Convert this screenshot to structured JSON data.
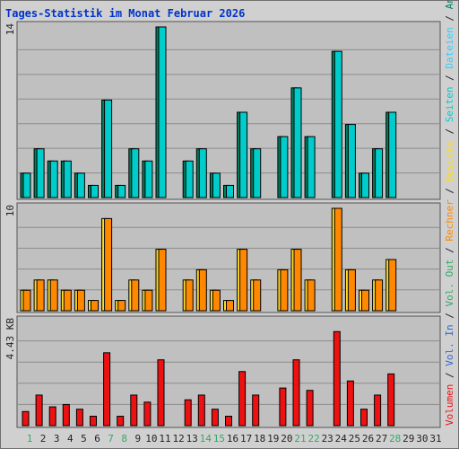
{
  "window": {
    "title": "Tages-Statistik im Monat Februar 2026"
  },
  "colors": {
    "panel_bg": "#c0c0c0",
    "anfragen": "#00805f",
    "dateien": "#33ccff",
    "seiten": "#00cccc",
    "besuche": "#ffdd22",
    "rechner": "#ff8800",
    "volumen": "#ee1111",
    "weekend": "#33aa66",
    "weekday": "#222222"
  },
  "chart_data": [
    {
      "type": "bar",
      "panel": "top",
      "ymax_label": "14",
      "ylim": [
        0,
        14
      ],
      "categories": [
        "1",
        "2",
        "3",
        "4",
        "5",
        "6",
        "7",
        "8",
        "9",
        "10",
        "11",
        "12",
        "13",
        "14",
        "15",
        "16",
        "17",
        "18",
        "19",
        "20",
        "21",
        "22",
        "23",
        "24",
        "25",
        "26",
        "27",
        "28",
        "29",
        "30",
        "31"
      ],
      "series": [
        {
          "name": "Seiten",
          "values": [
            2,
            4,
            3,
            3,
            2,
            1,
            8,
            1,
            4,
            3,
            14,
            0,
            3,
            4,
            2,
            1,
            7,
            4,
            0,
            5,
            9,
            5,
            0,
            12,
            6,
            2,
            4,
            7,
            0,
            0,
            0
          ]
        }
      ],
      "legend": [
        "Anfragen",
        "Dateien",
        "Seiten"
      ]
    },
    {
      "type": "bar",
      "panel": "middle",
      "ymax_label": "10",
      "ylim": [
        0,
        10
      ],
      "series": [
        {
          "name": "Besuche",
          "values": [
            2,
            3,
            3,
            2,
            2,
            1,
            9,
            1,
            3,
            2,
            6,
            0,
            3,
            4,
            2,
            1,
            6,
            3,
            0,
            4,
            6,
            3,
            0,
            10,
            4,
            2,
            3,
            5,
            0,
            0,
            0
          ]
        },
        {
          "name": "Rechner",
          "values": [
            2,
            3,
            3,
            2,
            2,
            1,
            9,
            1,
            3,
            2,
            6,
            0,
            3,
            4,
            2,
            1,
            6,
            3,
            0,
            4,
            6,
            3,
            0,
            10,
            4,
            2,
            3,
            5,
            0,
            0,
            0
          ]
        }
      ],
      "legend": [
        "Besuche",
        "Rechner"
      ]
    },
    {
      "type": "bar",
      "panel": "bottom",
      "ymax_label": "4.43 KB",
      "ylim": [
        0,
        4.43
      ],
      "series": [
        {
          "name": "Volumen",
          "values": [
            0.6,
            1.3,
            0.8,
            0.9,
            0.7,
            0.4,
            3.1,
            0.4,
            1.3,
            1.0,
            2.8,
            0,
            1.1,
            1.3,
            0.7,
            0.4,
            2.3,
            1.3,
            0,
            1.6,
            2.8,
            1.5,
            0,
            4.0,
            1.9,
            0.7,
            1.3,
            2.2,
            0,
            0,
            0
          ]
        }
      ],
      "legend": [
        "Volumen",
        "Vol. In",
        "Vol. Out"
      ]
    }
  ]
}
